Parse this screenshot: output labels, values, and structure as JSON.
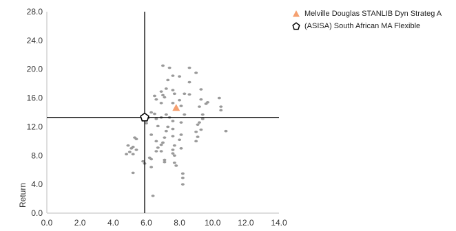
{
  "chart_data": {
    "type": "scatter",
    "title": "",
    "xlabel": "",
    "ylabel": "Return",
    "xlim": [
      0,
      14
    ],
    "ylim": [
      0,
      28
    ],
    "x_ticks": [
      "0.0",
      "2.0",
      "4.0",
      "6.0",
      "8.0",
      "10.0",
      "12.0",
      "14.0"
    ],
    "y_ticks": [
      "0.0",
      "4.0",
      "8.0",
      "12.0",
      "16.0",
      "20.0",
      "24.0",
      "28.0"
    ],
    "crosshair": {
      "x": 5.9,
      "y": 13.3
    },
    "grid": false,
    "legend_position": "top-right",
    "series": [
      {
        "name": "",
        "color": "#9a9a9a",
        "marker": "dot",
        "points": [
          [
            7.0,
            20.5
          ],
          [
            7.4,
            20.2
          ],
          [
            8.6,
            20.2
          ],
          [
            9.0,
            19.5
          ],
          [
            7.6,
            19.1
          ],
          [
            8.0,
            19.0
          ],
          [
            7.3,
            18.5
          ],
          [
            8.6,
            18.2
          ],
          [
            7.2,
            17.3
          ],
          [
            7.6,
            17.1
          ],
          [
            9.3,
            17.2
          ],
          [
            6.9,
            16.9
          ],
          [
            7.7,
            16.6
          ],
          [
            8.3,
            16.6
          ],
          [
            7.0,
            16.4
          ],
          [
            8.6,
            16.5
          ],
          [
            6.5,
            16.3
          ],
          [
            7.1,
            16.1
          ],
          [
            6.6,
            15.8
          ],
          [
            8.0,
            15.7
          ],
          [
            9.3,
            15.8
          ],
          [
            10.4,
            16.0
          ],
          [
            7.6,
            15.3
          ],
          [
            6.9,
            15.3
          ],
          [
            9.7,
            15.4
          ],
          [
            9.6,
            15.2
          ],
          [
            8.1,
            14.9
          ],
          [
            9.2,
            14.8
          ],
          [
            10.5,
            14.8
          ],
          [
            7.8,
            14.4
          ],
          [
            10.5,
            14.3
          ],
          [
            6.3,
            14.0
          ],
          [
            6.5,
            13.8
          ],
          [
            7.2,
            13.7
          ],
          [
            8.3,
            13.7
          ],
          [
            9.4,
            13.7
          ],
          [
            6.1,
            13.2
          ],
          [
            6.9,
            13.3
          ],
          [
            7.4,
            13.3
          ],
          [
            9.4,
            13.1
          ],
          [
            6.6,
            13.1
          ],
          [
            7.6,
            12.8
          ],
          [
            9.2,
            12.6
          ],
          [
            8.1,
            12.6
          ],
          [
            6.0,
            12.5
          ],
          [
            9.1,
            12.3
          ],
          [
            6.7,
            12.1
          ],
          [
            7.3,
            12.0
          ],
          [
            7.6,
            11.7
          ],
          [
            9.3,
            11.6
          ],
          [
            7.2,
            11.4
          ],
          [
            10.8,
            11.4
          ],
          [
            9.0,
            11.3
          ],
          [
            6.3,
            10.9
          ],
          [
            8.1,
            10.9
          ],
          [
            7.6,
            10.7
          ],
          [
            9.1,
            10.6
          ],
          [
            5.3,
            10.5
          ],
          [
            7.1,
            10.5
          ],
          [
            5.4,
            10.3
          ],
          [
            8.0,
            10.2
          ],
          [
            6.6,
            10.0
          ],
          [
            9.0,
            10.0
          ],
          [
            7.0,
            9.8
          ],
          [
            6.9,
            9.5
          ],
          [
            7.7,
            9.4
          ],
          [
            4.9,
            9.4
          ],
          [
            5.2,
            9.2
          ],
          [
            6.7,
            9.1
          ],
          [
            5.1,
            9.0
          ],
          [
            8.1,
            9.0
          ],
          [
            5.4,
            8.8
          ],
          [
            7.6,
            8.8
          ],
          [
            6.6,
            8.6
          ],
          [
            6.9,
            8.6
          ],
          [
            5.0,
            8.5
          ],
          [
            7.6,
            8.3
          ],
          [
            4.8,
            8.2
          ],
          [
            5.2,
            8.2
          ],
          [
            7.7,
            8.0
          ],
          [
            6.2,
            7.7
          ],
          [
            6.3,
            7.5
          ],
          [
            7.1,
            7.4
          ],
          [
            5.8,
            7.2
          ],
          [
            7.1,
            7.1
          ],
          [
            7.7,
            7.0
          ],
          [
            5.9,
            6.9
          ],
          [
            7.8,
            6.6
          ],
          [
            6.3,
            6.4
          ],
          [
            5.2,
            5.6
          ],
          [
            8.2,
            5.5
          ],
          [
            8.2,
            4.9
          ],
          [
            8.2,
            4.0
          ],
          [
            6.4,
            2.4
          ]
        ]
      },
      {
        "name": "Melville Douglas STANLIB Dyn Strateg A",
        "color": "#f5a070",
        "marker": "triangle",
        "points": [
          [
            7.8,
            14.6
          ]
        ]
      },
      {
        "name": "(ASISA) South African MA Flexible",
        "color": "#000000",
        "marker": "pentagon",
        "points": [
          [
            5.9,
            13.3
          ]
        ]
      }
    ]
  },
  "legend": {
    "items": [
      {
        "label": "Melville Douglas STANLIB Dyn Strateg A",
        "icon": "triangle-icon",
        "color": "#f5a070"
      },
      {
        "label": "(ASISA) South African MA Flexible",
        "icon": "pentagon-icon",
        "color": "#000000"
      }
    ]
  }
}
